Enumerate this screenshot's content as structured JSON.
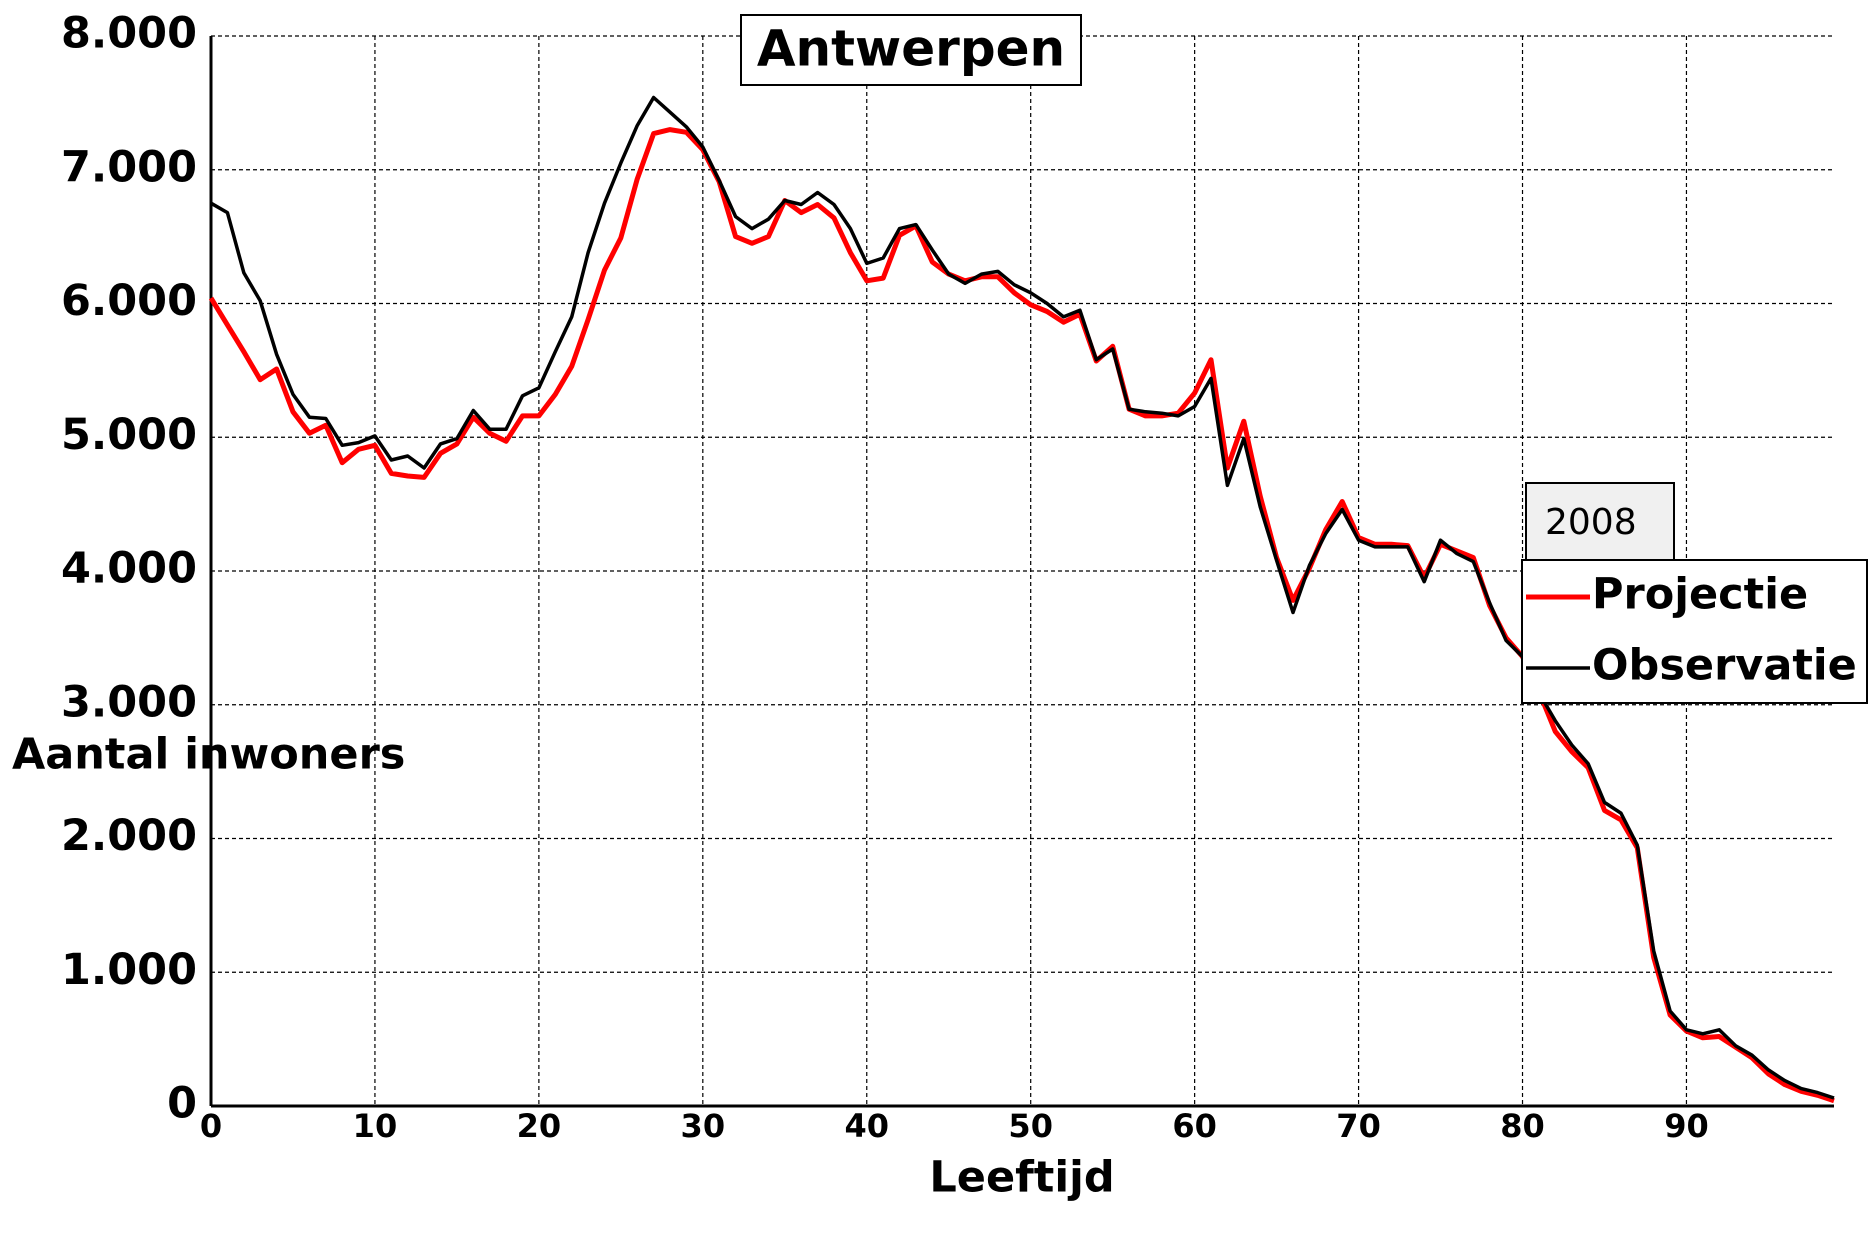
{
  "chart_data": {
    "type": "line",
    "title": "Antwerpen",
    "x_label": "Leeftijd",
    "y_label": "Aantal inwoners",
    "legend_title": "2008",
    "x": [
      0,
      1,
      2,
      3,
      4,
      5,
      6,
      7,
      8,
      9,
      10,
      11,
      12,
      13,
      14,
      15,
      16,
      17,
      18,
      19,
      20,
      21,
      22,
      23,
      24,
      25,
      26,
      27,
      28,
      29,
      30,
      31,
      32,
      33,
      34,
      35,
      36,
      37,
      38,
      39,
      40,
      41,
      42,
      43,
      44,
      45,
      46,
      47,
      48,
      49,
      50,
      51,
      52,
      53,
      54,
      55,
      56,
      57,
      58,
      59,
      60,
      61,
      62,
      63,
      64,
      65,
      66,
      67,
      68,
      69,
      70,
      71,
      72,
      73,
      74,
      75,
      76,
      77,
      78,
      79,
      80,
      81,
      82,
      83,
      84,
      85,
      86,
      87,
      88,
      89,
      90,
      91,
      92,
      93,
      94,
      95,
      96,
      97,
      98,
      99
    ],
    "series": [
      {
        "name": "Projectie",
        "color": "#ff0000",
        "values": [
          6040,
          5840,
          5640,
          5430,
          5510,
          5190,
          5030,
          5090,
          4810,
          4910,
          4940,
          4730,
          4710,
          4700,
          4880,
          4950,
          5150,
          5030,
          4970,
          5160,
          5160,
          5320,
          5530,
          5880,
          6250,
          6490,
          6930,
          7270,
          7300,
          7280,
          7150,
          6910,
          6500,
          6450,
          6500,
          6770,
          6680,
          6740,
          6640,
          6380,
          6170,
          6190,
          6510,
          6580,
          6310,
          6220,
          6170,
          6200,
          6200,
          6080,
          5990,
          5940,
          5860,
          5920,
          5570,
          5680,
          5210,
          5160,
          5160,
          5180,
          5330,
          5580,
          4770,
          5120,
          4560,
          4100,
          3780,
          4020,
          4310,
          4520,
          4250,
          4200,
          4200,
          4190,
          3950,
          4200,
          4150,
          4100,
          3740,
          3500,
          3360,
          3100,
          2800,
          2650,
          2530,
          2210,
          2140,
          1930,
          1110,
          680,
          560,
          510,
          520,
          440,
          360,
          240,
          160,
          110,
          80,
          40
        ]
      },
      {
        "name": "Observatie",
        "color": "#000000",
        "values": [
          6750,
          6680,
          6230,
          6020,
          5620,
          5320,
          5150,
          5140,
          4940,
          4960,
          5010,
          4830,
          4860,
          4770,
          4950,
          4990,
          5200,
          5060,
          5060,
          5310,
          5370,
          5640,
          5900,
          6380,
          6750,
          7050,
          7330,
          7540,
          7430,
          7320,
          7170,
          6920,
          6650,
          6560,
          6630,
          6770,
          6740,
          6830,
          6740,
          6560,
          6300,
          6340,
          6560,
          6590,
          6400,
          6220,
          6150,
          6220,
          6240,
          6140,
          6080,
          6000,
          5900,
          5950,
          5580,
          5660,
          5210,
          5190,
          5180,
          5160,
          5230,
          5440,
          4640,
          4990,
          4480,
          4080,
          3690,
          4040,
          4280,
          4460,
          4230,
          4180,
          4180,
          4180,
          3920,
          4230,
          4130,
          4070,
          3760,
          3480,
          3360,
          3090,
          2880,
          2700,
          2560,
          2270,
          2190,
          1950,
          1160,
          710,
          570,
          540,
          570,
          450,
          380,
          270,
          190,
          130,
          100,
          60
        ]
      }
    ],
    "xlim": [
      0,
      99
    ],
    "xticks": [
      0,
      10,
      20,
      30,
      40,
      50,
      60,
      70,
      80,
      90
    ],
    "ylim": [
      0,
      8000
    ],
    "yticks": [
      {
        "value": 0,
        "label": "0"
      },
      {
        "value": 1000,
        "label": "1.000"
      },
      {
        "value": 2000,
        "label": "2.000"
      },
      {
        "value": 3000,
        "label": "3.000"
      },
      {
        "value": 4000,
        "label": "4.000"
      },
      {
        "value": 5000,
        "label": "5.000"
      },
      {
        "value": 6000,
        "label": "6.000"
      },
      {
        "value": 7000,
        "label": "7.000"
      },
      {
        "value": 8000,
        "label": "8.000"
      }
    ],
    "grid": true
  }
}
